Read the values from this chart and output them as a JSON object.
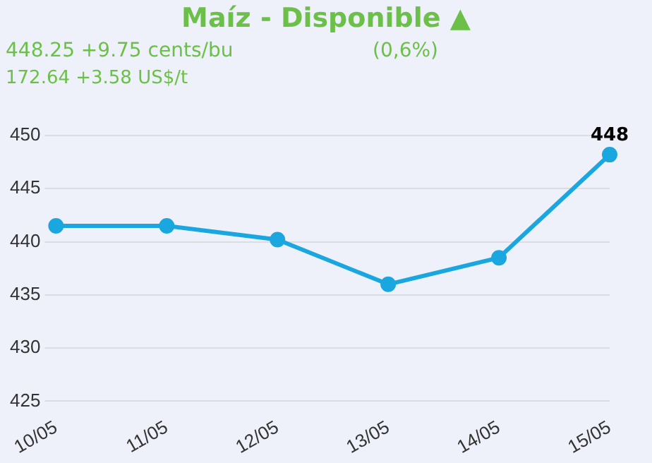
{
  "chart_data": {
    "type": "line",
    "title": "Maíz - Disponible ▲",
    "subtitle": "448.25 +9.75 cents/bu",
    "annotations": [
      "(0,6%)",
      "172.64 +3.58 US$/t"
    ],
    "categories": [
      "10/05",
      "11/05",
      "12/05",
      "13/05",
      "14/05",
      "15/05"
    ],
    "series": [
      {
        "color": "#1aa7e0",
        "values": [
          441.5,
          441.5,
          440.2,
          436,
          438.5,
          448.2
        ],
        "value_labels": [
          null,
          null,
          null,
          null,
          null,
          "448"
        ]
      }
    ],
    "ylim": [
      425,
      450
    ],
    "yticks": [
      425,
      430,
      435,
      440,
      445,
      450
    ],
    "grid": "y",
    "legend": false,
    "marker": "circle"
  }
}
